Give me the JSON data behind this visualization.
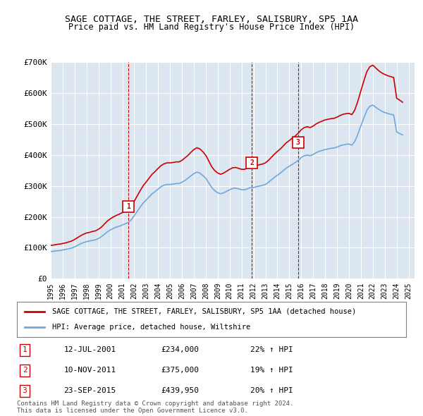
{
  "title": "SAGE COTTAGE, THE STREET, FARLEY, SALISBURY, SP5 1AA",
  "subtitle": "Price paid vs. HM Land Registry's House Price Index (HPI)",
  "background_color": "#dce6f0",
  "plot_bg_color": "#dce6f0",
  "ylabel": "",
  "ylim": [
    0,
    700000
  ],
  "yticks": [
    0,
    100000,
    200000,
    300000,
    400000,
    500000,
    600000,
    700000
  ],
  "ytick_labels": [
    "£0",
    "£100K",
    "£200K",
    "£300K",
    "£400K",
    "£500K",
    "£600K",
    "£700K"
  ],
  "xlim_start": 1995.0,
  "xlim_end": 2025.5,
  "sale_dates": [
    2001.53,
    2011.86,
    2015.73
  ],
  "sale_prices": [
    234000,
    375000,
    439950
  ],
  "sale_labels": [
    "1",
    "2",
    "3"
  ],
  "hpi_color": "#6fa8dc",
  "red_color": "#cc0000",
  "legend_label_red": "SAGE COTTAGE, THE STREET, FARLEY, SALISBURY, SP5 1AA (detached house)",
  "legend_label_blue": "HPI: Average price, detached house, Wiltshire",
  "table_rows": [
    [
      "1",
      "12-JUL-2001",
      "£234,000",
      "22% ↑ HPI"
    ],
    [
      "2",
      "10-NOV-2011",
      "£375,000",
      "19% ↑ HPI"
    ],
    [
      "3",
      "23-SEP-2015",
      "£439,950",
      "20% ↑ HPI"
    ]
  ],
  "footer": "Contains HM Land Registry data © Crown copyright and database right 2024.\nThis data is licensed under the Open Government Licence v3.0.",
  "hpi_years": [
    1995.0,
    1995.25,
    1995.5,
    1995.75,
    1996.0,
    1996.25,
    1996.5,
    1996.75,
    1997.0,
    1997.25,
    1997.5,
    1997.75,
    1998.0,
    1998.25,
    1998.5,
    1998.75,
    1999.0,
    1999.25,
    1999.5,
    1999.75,
    2000.0,
    2000.25,
    2000.5,
    2000.75,
    2001.0,
    2001.25,
    2001.5,
    2001.75,
    2002.0,
    2002.25,
    2002.5,
    2002.75,
    2003.0,
    2003.25,
    2003.5,
    2003.75,
    2004.0,
    2004.25,
    2004.5,
    2004.75,
    2005.0,
    2005.25,
    2005.5,
    2005.75,
    2006.0,
    2006.25,
    2006.5,
    2006.75,
    2007.0,
    2007.25,
    2007.5,
    2007.75,
    2008.0,
    2008.25,
    2008.5,
    2008.75,
    2009.0,
    2009.25,
    2009.5,
    2009.75,
    2010.0,
    2010.25,
    2010.5,
    2010.75,
    2011.0,
    2011.25,
    2011.5,
    2011.75,
    2012.0,
    2012.25,
    2012.5,
    2012.75,
    2013.0,
    2013.25,
    2013.5,
    2013.75,
    2014.0,
    2014.25,
    2014.5,
    2014.75,
    2015.0,
    2015.25,
    2015.5,
    2015.75,
    2016.0,
    2016.25,
    2016.5,
    2016.75,
    2017.0,
    2017.25,
    2017.5,
    2017.75,
    2018.0,
    2018.25,
    2018.5,
    2018.75,
    2019.0,
    2019.25,
    2019.5,
    2019.75,
    2020.0,
    2020.25,
    2020.5,
    2020.75,
    2021.0,
    2021.25,
    2021.5,
    2021.75,
    2022.0,
    2022.25,
    2022.5,
    2022.75,
    2023.0,
    2023.25,
    2023.5,
    2023.75,
    2024.0,
    2024.25,
    2024.5
  ],
  "hpi_values": [
    88000,
    89000,
    90500,
    91000,
    93000,
    95000,
    97000,
    99000,
    103000,
    108000,
    113000,
    117000,
    120000,
    122000,
    124000,
    126000,
    130000,
    136000,
    144000,
    152000,
    158000,
    163000,
    167000,
    170000,
    174000,
    178000,
    182000,
    191000,
    204000,
    218000,
    232000,
    245000,
    255000,
    265000,
    275000,
    282000,
    290000,
    298000,
    303000,
    305000,
    305000,
    306000,
    308000,
    308000,
    312000,
    318000,
    325000,
    333000,
    340000,
    345000,
    342000,
    334000,
    325000,
    310000,
    295000,
    285000,
    278000,
    275000,
    278000,
    283000,
    288000,
    292000,
    293000,
    291000,
    288000,
    288000,
    291000,
    295000,
    295000,
    298000,
    300000,
    302000,
    305000,
    312000,
    320000,
    328000,
    335000,
    342000,
    350000,
    358000,
    364000,
    370000,
    376000,
    383000,
    392000,
    398000,
    400000,
    398000,
    402000,
    408000,
    412000,
    415000,
    418000,
    420000,
    422000,
    423000,
    426000,
    430000,
    433000,
    435000,
    436000,
    432000,
    445000,
    468000,
    495000,
    520000,
    545000,
    558000,
    562000,
    555000,
    548000,
    542000,
    538000,
    535000,
    532000,
    530000,
    475000,
    470000,
    465000
  ],
  "red_line_years": [
    1995.0,
    1995.25,
    1995.5,
    1995.75,
    1996.0,
    1996.25,
    1996.5,
    1996.75,
    1997.0,
    1997.25,
    1997.5,
    1997.75,
    1998.0,
    1998.25,
    1998.5,
    1998.75,
    1999.0,
    1999.25,
    1999.5,
    1999.75,
    2000.0,
    2000.25,
    2000.5,
    2000.75,
    2001.0,
    2001.25,
    2001.5,
    2001.75,
    2002.0,
    2002.25,
    2002.5,
    2002.75,
    2003.0,
    2003.25,
    2003.5,
    2003.75,
    2004.0,
    2004.25,
    2004.5,
    2004.75,
    2005.0,
    2005.25,
    2005.5,
    2005.75,
    2006.0,
    2006.25,
    2006.5,
    2006.75,
    2007.0,
    2007.25,
    2007.5,
    2007.75,
    2008.0,
    2008.25,
    2008.5,
    2008.75,
    2009.0,
    2009.25,
    2009.5,
    2009.75,
    2010.0,
    2010.25,
    2010.5,
    2010.75,
    2011.0,
    2011.25,
    2011.5,
    2011.75,
    2012.0,
    2012.25,
    2012.5,
    2012.75,
    2013.0,
    2013.25,
    2013.5,
    2013.75,
    2014.0,
    2014.25,
    2014.5,
    2014.75,
    2015.0,
    2015.25,
    2015.5,
    2015.75,
    2016.0,
    2016.25,
    2016.5,
    2016.75,
    2017.0,
    2017.25,
    2017.5,
    2017.75,
    2018.0,
    2018.25,
    2018.5,
    2018.75,
    2019.0,
    2019.25,
    2019.5,
    2019.75,
    2020.0,
    2020.25,
    2020.5,
    2020.75,
    2021.0,
    2021.25,
    2021.5,
    2021.75,
    2022.0,
    2022.25,
    2022.5,
    2022.75,
    2023.0,
    2023.25,
    2023.5,
    2023.75,
    2024.0,
    2024.25,
    2024.5
  ],
  "red_line_values": [
    108000,
    109000,
    111000,
    112000,
    114000,
    116000,
    119000,
    122000,
    127000,
    133000,
    139000,
    144000,
    148000,
    150000,
    153000,
    155000,
    160000,
    167000,
    177000,
    187000,
    194000,
    200000,
    205000,
    209000,
    214000,
    219000,
    224000,
    235000,
    251000,
    268000,
    285000,
    301000,
    313000,
    326000,
    338000,
    347000,
    357000,
    366000,
    372000,
    375000,
    375000,
    376000,
    378000,
    378000,
    383000,
    391000,
    399000,
    409000,
    418000,
    424000,
    420000,
    411000,
    399000,
    381000,
    362000,
    350000,
    342000,
    338000,
    342000,
    348000,
    354000,
    359000,
    360000,
    357000,
    354000,
    354000,
    358000,
    362000,
    362000,
    366000,
    369000,
    371000,
    375000,
    383000,
    393000,
    403000,
    412000,
    420000,
    430000,
    440000,
    447000,
    455000,
    462000,
    471000,
    482000,
    489000,
    492000,
    489000,
    494000,
    501000,
    506000,
    510000,
    514000,
    516000,
    518000,
    519000,
    523000,
    528000,
    532000,
    534000,
    535000,
    531000,
    547000,
    575000,
    608000,
    640000,
    670000,
    686000,
    691000,
    682000,
    673000,
    666000,
    661000,
    657000,
    654000,
    651000,
    584000,
    578000,
    571000
  ]
}
